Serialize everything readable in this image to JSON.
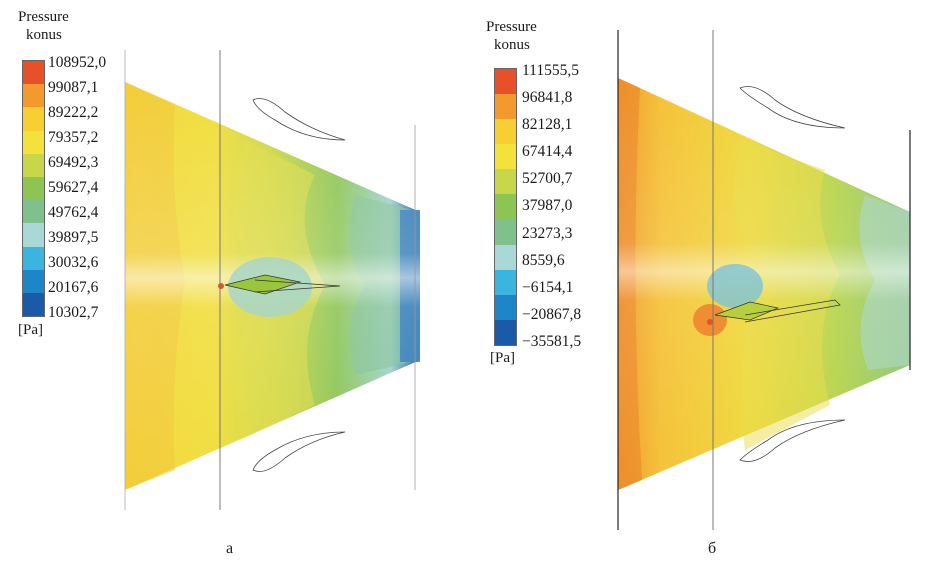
{
  "panels": [
    {
      "id": "a",
      "caption": "а",
      "legend": {
        "title_line1": "Pressure",
        "title_line2": "konus",
        "unit": "[Pa]",
        "values": [
          "108952,0",
          "99087,1",
          "89222,2",
          "79357,2",
          "69492,3",
          "59627,4",
          "49762,4",
          "39897,5",
          "30032,6",
          "20167,6",
          "10302,7"
        ],
        "colors": [
          "#e8502a",
          "#f39a2e",
          "#f7cf33",
          "#f3e23c",
          "#c8d64a",
          "#8dc553",
          "#7fc08c",
          "#a9d8d6",
          "#3cb4e0",
          "#1c86c8",
          "#1a5aa8"
        ]
      }
    },
    {
      "id": "b",
      "caption": "б",
      "legend": {
        "title_line1": "Pressure",
        "title_line2": "konus",
        "unit": "[Pa]",
        "values": [
          "111555,5",
          "96841,8",
          "82128,1",
          "67414,4",
          "52700,7",
          "37987,0",
          "23273,3",
          "8559,6",
          "−6154,1",
          "−20867,8",
          "−35581,5"
        ],
        "colors": [
          "#e8502a",
          "#f39a2e",
          "#f7cf33",
          "#f3e23c",
          "#c8d64a",
          "#8dc553",
          "#7fc08c",
          "#a9d8d6",
          "#3cb4e0",
          "#1c86c8",
          "#1a5aa8"
        ]
      }
    }
  ]
}
